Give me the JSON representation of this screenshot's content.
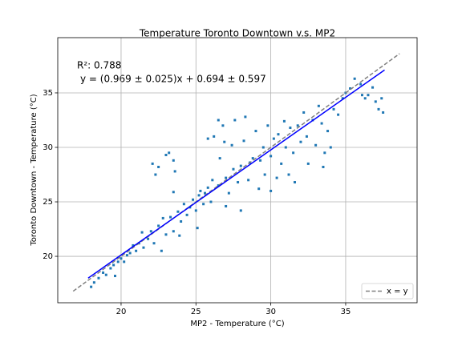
{
  "chart_data": {
    "type": "scatter",
    "title": "Temperature Toronto Downtown v.s. MP2",
    "xlabel": "MP2 - Temperature (°C)",
    "ylabel": "Toronto Downtown - Temperature (°C)",
    "annotations": [
      "R²: 0.788",
      "y = (0.969 ± 0.025)x + 0.694 ± 0.597"
    ],
    "xlim": [
      15.77,
      39.77
    ],
    "ylim": [
      15.74,
      40.07
    ],
    "xticks": [
      20,
      25,
      30,
      35
    ],
    "yticks": [
      20,
      25,
      30,
      35
    ],
    "grid": true,
    "color": "#1f77b4",
    "legend": "lower right",
    "x": [
      18,
      18.2,
      18.5,
      18.8,
      19,
      19.3,
      19.5,
      19.8,
      19.6,
      20,
      20.2,
      20.4,
      20.6,
      20.8,
      21,
      21.2,
      21.4,
      21.5,
      21.8,
      22,
      22.2,
      22.5,
      22.7,
      22.8,
      23,
      23,
      23.2,
      22.5,
      22.1,
      22.3,
      23.5,
      23.6,
      23.5,
      23.3,
      23.5,
      23.8,
      24,
      24.2,
      24.4,
      24.6,
      24.8,
      25,
      25.1,
      25.2,
      23.9,
      25.3,
      25.5,
      25.6,
      25.8,
      26,
      26.1,
      26.2,
      26.5,
      26.6,
      26.8,
      27,
      27,
      27.2,
      27.4,
      27.5,
      27.6,
      27.8,
      28,
      28,
      28.2,
      28.3,
      28.5,
      28.6,
      26.5,
      25.8,
      26.9,
      28.8,
      29,
      29.2,
      29.3,
      29.5,
      29.6,
      29.8,
      30,
      30,
      30.2,
      30.4,
      30.5,
      30.7,
      30.9,
      31,
      31.2,
      31.3,
      31.5,
      31.6,
      31.8,
      32,
      32.2,
      32.4,
      32.5,
      32.8,
      33,
      33.2,
      33.4,
      33.5,
      33.8,
      34,
      34.2,
      33.6,
      34.5,
      34.8,
      35,
      35.3,
      35.6,
      36,
      36.3,
      36.5,
      36.8,
      37,
      37.2,
      37.4,
      37.5,
      36.1
    ],
    "y": [
      17.2,
      17.6,
      18,
      18.5,
      18.3,
      18.9,
      19.2,
      19.5,
      18.2,
      19.8,
      19.5,
      20.1,
      20.3,
      21,
      20.5,
      21.2,
      22.2,
      20.8,
      21.6,
      22.3,
      21.2,
      22.8,
      20.5,
      23.5,
      22,
      29.3,
      29.5,
      28.2,
      28.5,
      27.5,
      28.8,
      27.8,
      25.9,
      23.6,
      22.3,
      24.1,
      23.2,
      24.8,
      23.8,
      24.5,
      25.2,
      24.2,
      22.6,
      25.6,
      21.9,
      26,
      24.8,
      25.8,
      26.3,
      25,
      27,
      31,
      26.5,
      29,
      32,
      27.2,
      24.6,
      25.8,
      30.2,
      28,
      32.5,
      26.8,
      28.3,
      24.2,
      30.6,
      32.8,
      27,
      28.6,
      32.5,
      30.8,
      30.5,
      29,
      31.5,
      26.2,
      28.8,
      30,
      27.5,
      32,
      29.2,
      26,
      30.8,
      27.2,
      31.2,
      28.5,
      32.4,
      30,
      27.5,
      31.8,
      29.5,
      26.8,
      32,
      30.5,
      33.2,
      31,
      28.5,
      32.5,
      30.2,
      33.8,
      32.2,
      28.2,
      31.5,
      30,
      33.5,
      29.5,
      33,
      34.5,
      35,
      35.4,
      36.3,
      35.8,
      34.5,
      34.8,
      35.5,
      34.2,
      33.5,
      34.5,
      33.2,
      34.8
    ],
    "fit_line": {
      "x": [
        17.8,
        37.6
      ],
      "y": [
        18.0,
        37.1
      ],
      "color": "#0000ff"
    },
    "reference_line": {
      "name": "x = y",
      "x": [
        16.8,
        38.6
      ],
      "y": [
        16.8,
        38.6
      ],
      "color": "#808080",
      "dashed": true
    }
  }
}
